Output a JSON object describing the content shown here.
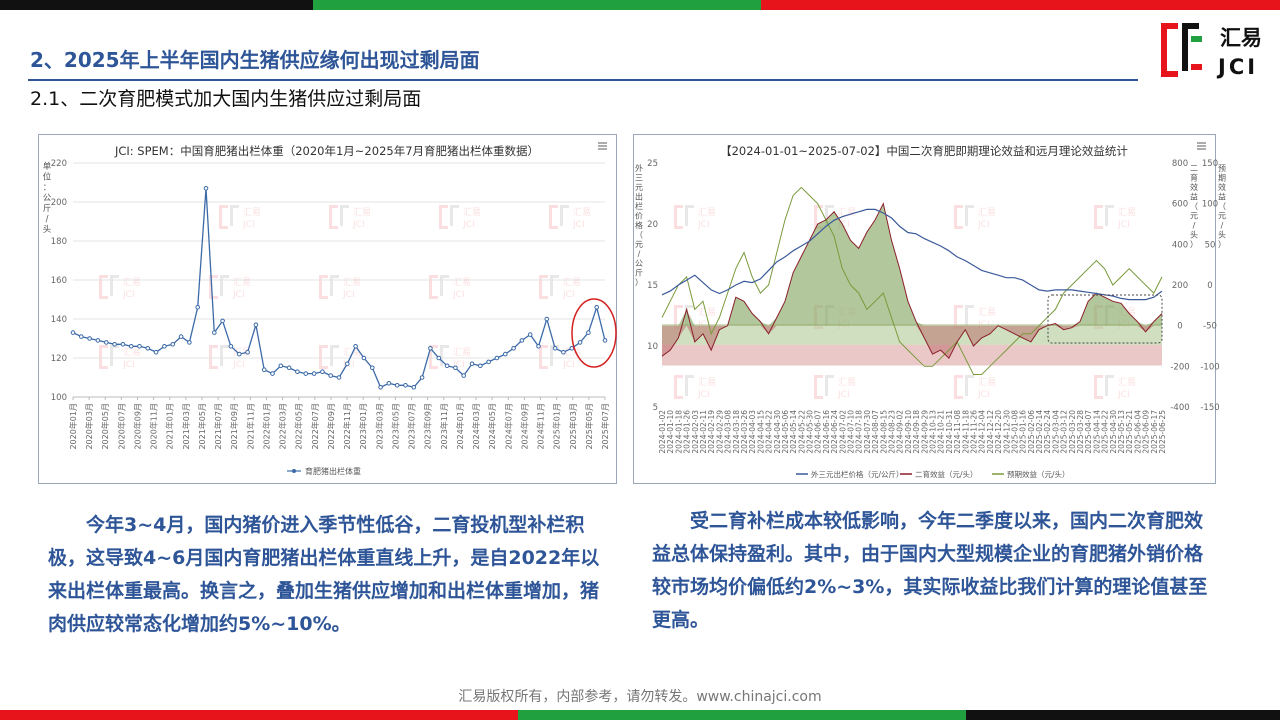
{
  "colors": {
    "green": "#21a040",
    "red": "#e8141c",
    "black": "#111111",
    "blue": "#2e5597",
    "accent_line": "#3b6aa8"
  },
  "header": {
    "title": "2、2025年上半年国内生猪供应缘何出现过剩局面",
    "subtitle": "2.1、二次育肥模式加大国内生猪供应过剩局面"
  },
  "logo": {
    "cn": "汇易",
    "en": "JCI",
    "icon": "jci-bracket-logo"
  },
  "left_chart": {
    "menu_icon": "hamburger-icon",
    "chart_data": {
      "type": "line",
      "title": "JCI: SPEM：中国育肥猪出栏体重（2020年1月~2025年7月育肥猪出栏体重数据）",
      "ylabel": "单位：公斤/头",
      "ylim": [
        100,
        220
      ],
      "yticks": [
        100,
        120,
        140,
        160,
        180,
        200,
        220
      ],
      "legend": "育肥猪出栏体重",
      "legend_position": "bottom",
      "grid": true,
      "x_tick_labels": [
        "2020年01月",
        "2020年03月",
        "2020年05月",
        "2020年07月",
        "2020年09月",
        "2020年11月",
        "2021年01月",
        "2021年03月",
        "2021年05月",
        "2021年07月",
        "2021年09月",
        "2021年11月",
        "2022年01月",
        "2022年03月",
        "2022年05月",
        "2022年07月",
        "2022年09月",
        "2022年11月",
        "2023年01月",
        "2023年03月",
        "2023年05月",
        "2023年07月",
        "2023年09月",
        "2023年11月",
        "2024年01月",
        "2024年03月",
        "2024年05月",
        "2024年07月",
        "2024年09月",
        "2024年11月",
        "2025年01月",
        "2025年03月",
        "2025年05月",
        "2025年07月"
      ],
      "series": [
        {
          "name": "育肥猪出栏体重",
          "values": [
            133,
            131,
            130,
            129,
            128,
            127,
            127,
            126,
            126,
            125,
            123,
            126,
            127,
            131,
            128,
            146,
            207,
            133,
            139,
            126,
            122,
            123,
            137,
            114,
            112,
            116,
            115,
            113,
            112,
            112,
            113,
            111,
            110,
            117,
            126,
            120,
            115,
            105,
            107,
            106,
            106,
            105,
            110,
            125,
            120,
            116,
            115,
            111,
            117,
            116,
            118,
            120,
            122,
            125,
            129,
            132,
            126,
            140,
            125,
            123,
            125,
            128,
            133,
            146,
            129
          ]
        }
      ],
      "highlight": "circle-around-latest-peak"
    }
  },
  "right_chart": {
    "menu_icon": "hamburger-icon",
    "chart_data": {
      "type": "line",
      "title": "【2024-01-01~2025-07-02】中国二次育肥即期理论效益和远月理论效益统计",
      "y_left": {
        "label": "外三元出栏价格（元/公斤）",
        "ticks": [
          5,
          10,
          15,
          20,
          25
        ],
        "range": [
          5,
          25
        ]
      },
      "y_mid": {
        "label": "二育效益（元/头）",
        "ticks": [
          -400,
          -200,
          0,
          200,
          400,
          600,
          800
        ],
        "range": [
          -400,
          800
        ]
      },
      "y_right": {
        "label": "预期效益（元/头）",
        "ticks": [
          -150,
          -100,
          -50,
          0,
          50,
          100,
          150
        ],
        "range": [
          -150,
          150
        ]
      },
      "x_tick_labels": [
        "2024-01-02",
        "2024-01-10",
        "2024-01-18",
        "2024-01-26",
        "2024-02-03",
        "2024-02-11",
        "2024-02-19",
        "2024-02-29",
        "2024-03-08",
        "2024-03-18",
        "2024-03-26",
        "2024-04-03",
        "2024-04-15",
        "2024-04-22",
        "2024-04-30",
        "2024-05-06",
        "2024-05-14",
        "2024-05-22",
        "2024-05-30",
        "2024-06-07",
        "2024-06-16",
        "2024-06-24",
        "2024-07-02",
        "2024-07-10",
        "2024-07-18",
        "2024-07-30",
        "2024-08-07",
        "2024-08-15",
        "2024-08-23",
        "2024-09-02",
        "2024-09-10",
        "2024-09-18",
        "2024-09-29",
        "2024-10-13",
        "2024-10-21",
        "2024-10-31",
        "2024-11-08",
        "2024-11-18",
        "2024-11-26",
        "2024-12-04",
        "2024-12-12",
        "2024-12-20",
        "2024-12-30",
        "2025-01-08",
        "2025-01-16",
        "2025-02-06",
        "2025-02-14",
        "2025-02-24",
        "2025-03-04",
        "2025-03-12",
        "2025-03-20",
        "2025-03-28",
        "2025-04-07",
        "2025-04-14",
        "2025-04-22",
        "2025-04-30",
        "2025-05-13",
        "2025-05-21",
        "2025-06-04",
        "2025-06-09",
        "2025-06-17",
        "2025-06-25"
      ],
      "legend": [
        "外三元出栏价格（元/公斤）",
        "二育效益（元/头）",
        "预期效益（元/头）"
      ],
      "legend_position": "bottom",
      "series": [
        {
          "name": "外三元出栏价格（元/公斤）",
          "axis": "left",
          "values": [
            14.2,
            14.5,
            15.0,
            15.4,
            15.8,
            15.2,
            14.6,
            14.3,
            14.6,
            15.0,
            15.3,
            15.2,
            15.5,
            16.2,
            16.9,
            17.3,
            17.8,
            18.2,
            18.6,
            19.2,
            19.8,
            20.3,
            20.6,
            20.8,
            21.0,
            21.2,
            21.2,
            20.9,
            20.5,
            19.8,
            19.3,
            19.2,
            18.8,
            18.5,
            18.2,
            17.8,
            17.3,
            17.0,
            16.6,
            16.2,
            16.0,
            15.8,
            15.6,
            15.6,
            15.4,
            15.0,
            14.6,
            14.5,
            14.6,
            14.6,
            14.6,
            14.5,
            14.4,
            14.3,
            14.2,
            14.1,
            13.9,
            13.8,
            13.8,
            13.8,
            14.0,
            14.5
          ]
        },
        {
          "name": "二育效益（元/头）",
          "axis": "mid",
          "values": [
            -150,
            -120,
            -60,
            80,
            -80,
            -40,
            -120,
            -20,
            0,
            140,
            120,
            60,
            20,
            -40,
            40,
            120,
            260,
            340,
            420,
            500,
            520,
            560,
            500,
            420,
            380,
            460,
            520,
            600,
            420,
            280,
            120,
            20,
            -60,
            -140,
            -120,
            -160,
            -80,
            -20,
            -100,
            -60,
            -40,
            0,
            -20,
            -40,
            -60,
            -80,
            -20,
            0,
            10,
            -20,
            -10,
            20,
            120,
            160,
            140,
            120,
            110,
            60,
            20,
            -30,
            20,
            60
          ]
        },
        {
          "name": "预期效益（元/头）",
          "axis": "right",
          "values": [
            -40,
            -20,
            0,
            10,
            -30,
            -20,
            -60,
            -40,
            -10,
            20,
            40,
            10,
            -10,
            0,
            40,
            80,
            110,
            120,
            110,
            100,
            80,
            60,
            20,
            0,
            -10,
            -30,
            -20,
            -10,
            -40,
            -70,
            -80,
            -90,
            -100,
            -100,
            -90,
            -80,
            -70,
            -90,
            -110,
            -110,
            -100,
            -90,
            -80,
            -70,
            -60,
            -60,
            -50,
            -40,
            -30,
            -10,
            0,
            10,
            20,
            30,
            20,
            0,
            10,
            20,
            10,
            0,
            -10,
            10
          ]
        }
      ],
      "bands": [
        {
          "range_left": [
            8.4,
            11.8
          ],
          "meaning": "盈亏区间"
        }
      ],
      "highlight": "dashed-rectangle-2025-04-to-2025-07"
    }
  },
  "paragraphs": {
    "left": "今年3~4月，国内猪价进入季节性低谷，二育投机型补栏积极，这导致4~6月国内育肥猪出栏体重直线上升，是自2022年以来出栏体重最高。换言之，叠加生猪供应增加和出栏体重增加，猪肉供应较常态化增加约5%~10%。",
    "right": "受二育补栏成本较低影响，今年二季度以来，国内二次育肥效益总体保持盈利。其中，由于国内大型规模企业的育肥猪外销价格较市场均价偏低约2%~3%，其实际收益比我们计算的理论值甚至更高。"
  },
  "footer": {
    "text": "汇易版权所有，内部参考，请勿转发。www.chinajci.com"
  }
}
